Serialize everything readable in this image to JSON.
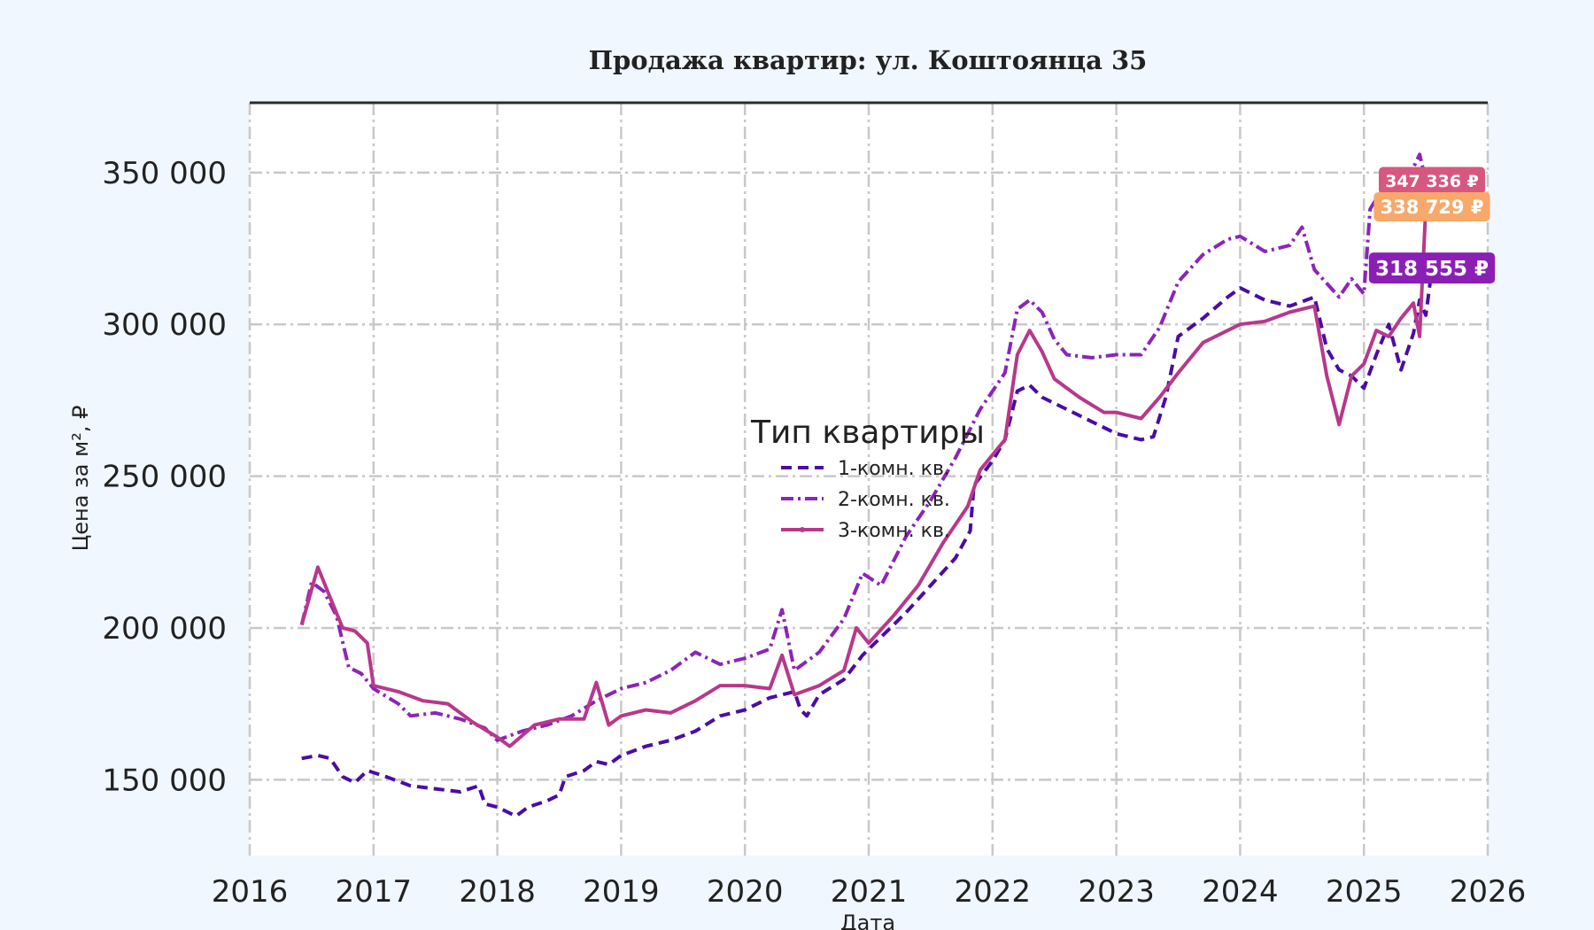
{
  "chart_data": {
    "type": "line",
    "title": "Продажа квартир: ул. Коштоянца 35",
    "xlabel": "Дата",
    "ylabel": "Цена за м², ₽",
    "xlim": [
      2016.0,
      2026.0
    ],
    "ylim": [
      125000,
      373000
    ],
    "x_ticks": [
      2016,
      2017,
      2018,
      2019,
      2020,
      2021,
      2022,
      2023,
      2024,
      2025,
      2026
    ],
    "x_tick_labels": [
      "2016",
      "2017",
      "2018",
      "2019",
      "2020",
      "2021",
      "2022",
      "2023",
      "2024",
      "2025",
      "2026"
    ],
    "y_ticks": [
      150000,
      200000,
      250000,
      300000,
      350000
    ],
    "y_tick_labels": [
      "150 000",
      "200 000",
      "250 000",
      "300 000",
      "350 000"
    ],
    "grid": true,
    "legend": {
      "title": "Тип квартиры",
      "placement": "center"
    },
    "series": [
      {
        "name": "1-комн. кв.",
        "color": "#4a0ca6",
        "style": "dashed",
        "points": [
          [
            2016.42,
            157000
          ],
          [
            2016.55,
            158000
          ],
          [
            2016.65,
            157000
          ],
          [
            2016.75,
            151000
          ],
          [
            2016.85,
            149000
          ],
          [
            2016.95,
            153000
          ],
          [
            2017.1,
            151000
          ],
          [
            2017.3,
            148000
          ],
          [
            2017.5,
            147000
          ],
          [
            2017.7,
            146000
          ],
          [
            2017.85,
            148000
          ],
          [
            2017.9,
            142000
          ],
          [
            2018.0,
            141000
          ],
          [
            2018.15,
            138000
          ],
          [
            2018.25,
            141000
          ],
          [
            2018.4,
            143000
          ],
          [
            2018.5,
            145000
          ],
          [
            2018.55,
            151000
          ],
          [
            2018.7,
            153000
          ],
          [
            2018.8,
            156000
          ],
          [
            2018.9,
            155000
          ],
          [
            2019.0,
            158000
          ],
          [
            2019.2,
            161000
          ],
          [
            2019.4,
            163000
          ],
          [
            2019.6,
            166000
          ],
          [
            2019.8,
            171000
          ],
          [
            2020.0,
            173000
          ],
          [
            2020.2,
            177000
          ],
          [
            2020.4,
            179000
          ],
          [
            2020.45,
            173000
          ],
          [
            2020.5,
            171000
          ],
          [
            2020.6,
            178000
          ],
          [
            2020.8,
            183000
          ],
          [
            2020.95,
            191000
          ],
          [
            2021.1,
            197000
          ],
          [
            2021.3,
            205000
          ],
          [
            2021.5,
            214000
          ],
          [
            2021.7,
            223000
          ],
          [
            2021.82,
            232000
          ],
          [
            2021.85,
            247000
          ],
          [
            2022.0,
            255000
          ],
          [
            2022.1,
            262000
          ],
          [
            2022.2,
            278000
          ],
          [
            2022.3,
            280000
          ],
          [
            2022.4,
            276000
          ],
          [
            2022.6,
            272000
          ],
          [
            2022.8,
            268000
          ],
          [
            2023.0,
            264000
          ],
          [
            2023.2,
            262000
          ],
          [
            2023.3,
            263000
          ],
          [
            2023.4,
            276000
          ],
          [
            2023.5,
            296000
          ],
          [
            2023.7,
            302000
          ],
          [
            2023.9,
            309000
          ],
          [
            2024.0,
            312000
          ],
          [
            2024.2,
            308000
          ],
          [
            2024.4,
            306000
          ],
          [
            2024.6,
            309000
          ],
          [
            2024.7,
            292000
          ],
          [
            2024.8,
            285000
          ],
          [
            2024.9,
            283000
          ],
          [
            2025.0,
            279000
          ],
          [
            2025.1,
            290000
          ],
          [
            2025.2,
            300000
          ],
          [
            2025.3,
            285000
          ],
          [
            2025.4,
            297000
          ],
          [
            2025.45,
            308000
          ],
          [
            2025.5,
            303000
          ],
          [
            2025.55,
            318555
          ]
        ]
      },
      {
        "name": "2-комн. кв.",
        "color": "#8c24b8",
        "style": "dashdot",
        "points": [
          [
            2016.42,
            201000
          ],
          [
            2016.5,
            215000
          ],
          [
            2016.6,
            212000
          ],
          [
            2016.7,
            204000
          ],
          [
            2016.8,
            187000
          ],
          [
            2016.9,
            185000
          ],
          [
            2017.0,
            180000
          ],
          [
            2017.2,
            175000
          ],
          [
            2017.3,
            171000
          ],
          [
            2017.5,
            172000
          ],
          [
            2017.7,
            170000
          ],
          [
            2017.9,
            167000
          ],
          [
            2018.0,
            163000
          ],
          [
            2018.2,
            166000
          ],
          [
            2018.4,
            168000
          ],
          [
            2018.6,
            171000
          ],
          [
            2018.8,
            176000
          ],
          [
            2019.0,
            180000
          ],
          [
            2019.2,
            182000
          ],
          [
            2019.4,
            186000
          ],
          [
            2019.6,
            192000
          ],
          [
            2019.8,
            188000
          ],
          [
            2020.0,
            190000
          ],
          [
            2020.2,
            193000
          ],
          [
            2020.3,
            206000
          ],
          [
            2020.4,
            186000
          ],
          [
            2020.6,
            192000
          ],
          [
            2020.8,
            203000
          ],
          [
            2020.95,
            218000
          ],
          [
            2021.1,
            214000
          ],
          [
            2021.3,
            230000
          ],
          [
            2021.5,
            242000
          ],
          [
            2021.7,
            256000
          ],
          [
            2021.9,
            272000
          ],
          [
            2022.1,
            284000
          ],
          [
            2022.2,
            305000
          ],
          [
            2022.3,
            308000
          ],
          [
            2022.4,
            304000
          ],
          [
            2022.5,
            295000
          ],
          [
            2022.6,
            290000
          ],
          [
            2022.8,
            289000
          ],
          [
            2023.0,
            290000
          ],
          [
            2023.2,
            290000
          ],
          [
            2023.35,
            299000
          ],
          [
            2023.5,
            314000
          ],
          [
            2023.7,
            323000
          ],
          [
            2023.9,
            328000
          ],
          [
            2024.0,
            329000
          ],
          [
            2024.2,
            324000
          ],
          [
            2024.4,
            326000
          ],
          [
            2024.5,
            332000
          ],
          [
            2024.6,
            318000
          ],
          [
            2024.8,
            309000
          ],
          [
            2024.9,
            315000
          ],
          [
            2025.0,
            310000
          ],
          [
            2025.05,
            338000
          ],
          [
            2025.2,
            348000
          ],
          [
            2025.3,
            343000
          ],
          [
            2025.45,
            356000
          ],
          [
            2025.5,
            347336
          ]
        ]
      },
      {
        "name": "3-комн. кв.",
        "color": "#b8388a",
        "style": "solid",
        "points": [
          [
            2016.42,
            201000
          ],
          [
            2016.55,
            220000
          ],
          [
            2016.65,
            210000
          ],
          [
            2016.75,
            200000
          ],
          [
            2016.85,
            199000
          ],
          [
            2016.95,
            195000
          ],
          [
            2017.0,
            181000
          ],
          [
            2017.2,
            179000
          ],
          [
            2017.4,
            176000
          ],
          [
            2017.6,
            175000
          ],
          [
            2017.8,
            169000
          ],
          [
            2018.0,
            164000
          ],
          [
            2018.1,
            161000
          ],
          [
            2018.3,
            168000
          ],
          [
            2018.5,
            170000
          ],
          [
            2018.7,
            170000
          ],
          [
            2018.8,
            182000
          ],
          [
            2018.9,
            168000
          ],
          [
            2019.0,
            171000
          ],
          [
            2019.2,
            173000
          ],
          [
            2019.4,
            172000
          ],
          [
            2019.6,
            176000
          ],
          [
            2019.8,
            181000
          ],
          [
            2020.0,
            181000
          ],
          [
            2020.2,
            180000
          ],
          [
            2020.3,
            191000
          ],
          [
            2020.4,
            178000
          ],
          [
            2020.6,
            181000
          ],
          [
            2020.8,
            186000
          ],
          [
            2020.9,
            200000
          ],
          [
            2021.0,
            195000
          ],
          [
            2021.2,
            204000
          ],
          [
            2021.4,
            214000
          ],
          [
            2021.6,
            228000
          ],
          [
            2021.8,
            240000
          ],
          [
            2021.9,
            252000
          ],
          [
            2022.1,
            262000
          ],
          [
            2022.2,
            290000
          ],
          [
            2022.3,
            298000
          ],
          [
            2022.4,
            291000
          ],
          [
            2022.5,
            282000
          ],
          [
            2022.7,
            276000
          ],
          [
            2022.9,
            271000
          ],
          [
            2023.0,
            271000
          ],
          [
            2023.2,
            269000
          ],
          [
            2023.35,
            276000
          ],
          [
            2023.5,
            284000
          ],
          [
            2023.7,
            294000
          ],
          [
            2023.9,
            298000
          ],
          [
            2024.0,
            300000
          ],
          [
            2024.2,
            301000
          ],
          [
            2024.4,
            304000
          ],
          [
            2024.6,
            306000
          ],
          [
            2024.7,
            283000
          ],
          [
            2024.8,
            267000
          ],
          [
            2024.9,
            283000
          ],
          [
            2025.0,
            287000
          ],
          [
            2025.1,
            298000
          ],
          [
            2025.2,
            296000
          ],
          [
            2025.3,
            302000
          ],
          [
            2025.4,
            307000
          ],
          [
            2025.45,
            296000
          ],
          [
            2025.5,
            338729
          ]
        ]
      }
    ],
    "end_labels": [
      {
        "text": "347 336 ₽",
        "value": 347336,
        "color": "#d6577f"
      },
      {
        "text": "338 729 ₽",
        "value": 338729,
        "color": "#f7a86a"
      },
      {
        "text": "318 555 ₽",
        "value": 318555,
        "color": "#8b1fb4"
      }
    ]
  }
}
